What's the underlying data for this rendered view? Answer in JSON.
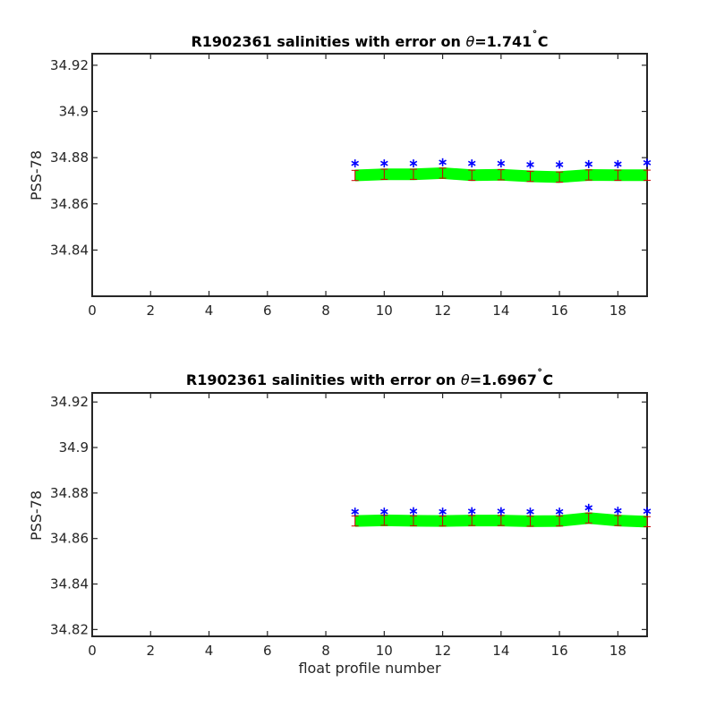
{
  "figure": {
    "xlabel": "float profile number"
  },
  "colors": {
    "mapped_line": "#00ff00",
    "error_bar": "#cc0000",
    "float_points": "#0000ff",
    "axes": "#262626"
  },
  "chart_data": [
    {
      "type": "line",
      "title_prefix": "R1902361 salinities with error on ",
      "title_theta": "θ",
      "title_value": "=1.741",
      "title_degree": "˚",
      "title_unit": "C",
      "ylabel": "PSS-78",
      "xlabel": "",
      "xlim": [
        0,
        19
      ],
      "ylim": [
        34.82,
        34.925
      ],
      "xticks": [
        "0",
        "2",
        "4",
        "6",
        "8",
        "10",
        "12",
        "14",
        "16",
        "18"
      ],
      "yticks": [
        "34.84",
        "34.86",
        "34.88",
        "34.9",
        "34.92"
      ],
      "grid": false,
      "x": [
        9,
        10,
        11,
        12,
        13,
        14,
        15,
        16,
        17,
        18,
        19
      ],
      "series": [
        {
          "values": [
            34.8723,
            34.8728,
            34.8728,
            34.8733,
            34.8724,
            34.8726,
            34.8719,
            34.8716,
            34.8725,
            34.8724,
            34.8724
          ]
        },
        {
          "values": [
            34.8775,
            34.8775,
            34.8775,
            34.878,
            34.8775,
            34.8775,
            34.877,
            34.877,
            34.8772,
            34.8772,
            34.8778
          ]
        }
      ],
      "error": [
        0.0022,
        0.0022,
        0.0022,
        0.0022,
        0.0022,
        0.0022,
        0.0022,
        0.0022,
        0.0022,
        0.0022,
        0.0022
      ]
    },
    {
      "type": "line",
      "title_prefix": "R1902361 salinities with error on ",
      "title_theta": "θ",
      "title_value": "=1.6967",
      "title_degree": "˚",
      "title_unit": "C",
      "ylabel": "PSS-78",
      "xlabel": "float profile number",
      "xlim": [
        0,
        19
      ],
      "ylim": [
        34.817,
        34.924
      ],
      "xticks": [
        "0",
        "2",
        "4",
        "6",
        "8",
        "10",
        "12",
        "14",
        "16",
        "18"
      ],
      "yticks": [
        "34.82",
        "34.84",
        "34.86",
        "34.88",
        "34.9",
        "34.92"
      ],
      "grid": false,
      "x": [
        9,
        10,
        11,
        12,
        13,
        14,
        15,
        16,
        17,
        18,
        19
      ],
      "series": [
        {
          "values": [
            34.8677,
            34.868,
            34.8678,
            34.8677,
            34.8679,
            34.8679,
            34.8676,
            34.8677,
            34.869,
            34.8679,
            34.8674
          ]
        },
        {
          "values": [
            34.8718,
            34.8718,
            34.872,
            34.8718,
            34.872,
            34.872,
            34.8718,
            34.8718,
            34.8735,
            34.8722,
            34.872
          ]
        }
      ],
      "error": [
        0.0022,
        0.0022,
        0.0022,
        0.0022,
        0.0022,
        0.0022,
        0.0022,
        0.0022,
        0.0022,
        0.0022,
        0.0022
      ]
    }
  ]
}
